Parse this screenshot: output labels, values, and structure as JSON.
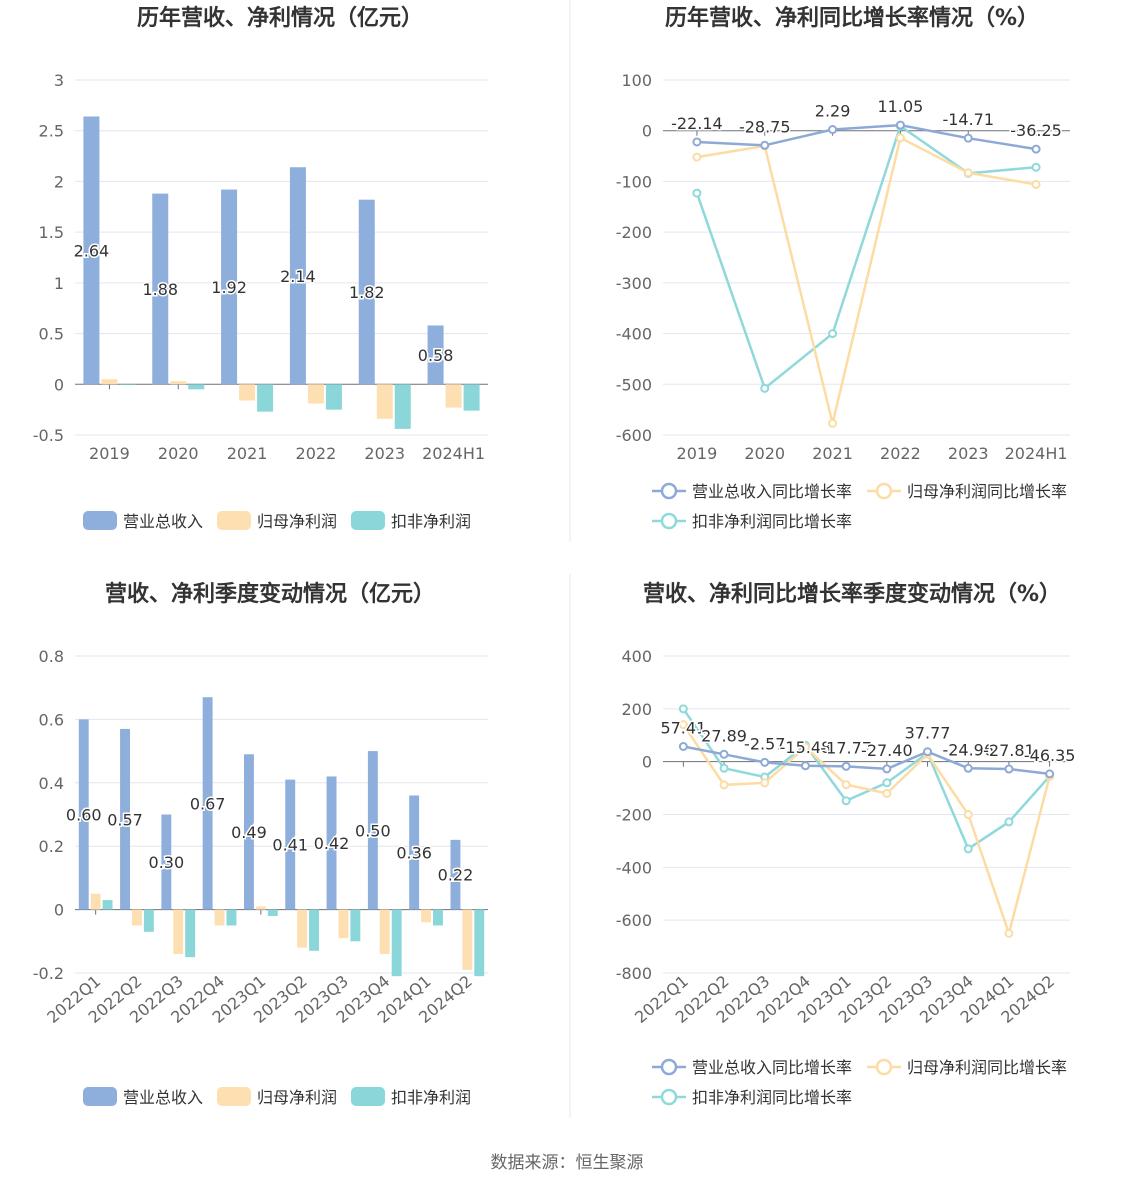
{
  "source": "数据来源：恒生聚源",
  "colors": {
    "revenue": "#8eaedc",
    "netprofit": "#fddfb1",
    "deducted": "#8ad6d8",
    "revenue_line": "#8ea9d6",
    "netprofit_line": "#fcdca4",
    "deducted_line": "#8fd9da",
    "axis_text": "#666666",
    "grid": "#e3e6ef",
    "title": "#333333"
  },
  "chart_data": [
    {
      "type": "bar",
      "title": "历年营收、净利情况（亿元）",
      "categories": [
        "2019",
        "2020",
        "2021",
        "2022",
        "2023",
        "2024H1"
      ],
      "ylim": [
        -0.5,
        3
      ],
      "yticks": [
        "3",
        "2.5",
        "2",
        "1.5",
        "1",
        "0.5",
        "0",
        "-0.5"
      ],
      "ytick_values": [
        3,
        2.5,
        2,
        1.5,
        1,
        0.5,
        0,
        -0.5
      ],
      "grid": true,
      "legend_position": "bottom",
      "series": [
        {
          "name": "营业总收入",
          "values": [
            2.64,
            1.88,
            1.92,
            2.14,
            1.82,
            0.58
          ],
          "labels": [
            "2.64",
            "1.88",
            "1.92",
            "2.14",
            "1.82",
            "0.58"
          ]
        },
        {
          "name": "归母净利润",
          "values": [
            0.05,
            0.03,
            -0.16,
            -0.19,
            -0.34,
            -0.23
          ]
        },
        {
          "name": "扣非净利润",
          "values": [
            0.0,
            -0.05,
            -0.27,
            -0.25,
            -0.44,
            -0.26
          ]
        }
      ]
    },
    {
      "type": "line",
      "title": "历年营收、净利同比增长率情况（%）",
      "categories": [
        "2019",
        "2020",
        "2021",
        "2022",
        "2023",
        "2024H1"
      ],
      "ylim": [
        -600,
        100
      ],
      "yticks": [
        "100",
        "0",
        "-100",
        "-200",
        "-300",
        "-400",
        "-500",
        "-600"
      ],
      "ytick_values": [
        100,
        0,
        -100,
        -200,
        -300,
        -400,
        -500,
        -600
      ],
      "grid": true,
      "legend_position": "bottom",
      "series": [
        {
          "name": "营业总收入同比增长率",
          "values": [
            -22.14,
            -28.75,
            2.29,
            11.05,
            -14.71,
            -36.25
          ],
          "labels": [
            "-22.14",
            "-28.75",
            "2.29",
            "11.05",
            "-14.71",
            "-36.25"
          ]
        },
        {
          "name": "归母净利润同比增长率",
          "values": [
            -52,
            -30,
            -577,
            -14,
            -83,
            -106
          ]
        },
        {
          "name": "扣非净利润同比增长率",
          "values": [
            -123,
            -508,
            -400,
            9,
            -84,
            -72
          ]
        }
      ]
    },
    {
      "type": "bar",
      "title": "营收、净利季度变动情况（亿元）",
      "categories": [
        "2022Q1",
        "2022Q2",
        "2022Q3",
        "2022Q4",
        "2023Q1",
        "2023Q2",
        "2023Q3",
        "2023Q4",
        "2024Q1",
        "2024Q2"
      ],
      "ylim": [
        -0.2,
        0.8
      ],
      "yticks": [
        "0.8",
        "0.6",
        "0.4",
        "0.2",
        "0",
        "-0.2"
      ],
      "ytick_values": [
        0.8,
        0.6,
        0.4,
        0.2,
        0,
        -0.2
      ],
      "grid": true,
      "legend_position": "bottom",
      "series": [
        {
          "name": "营业总收入",
          "values": [
            0.6,
            0.57,
            0.3,
            0.67,
            0.49,
            0.41,
            0.42,
            0.5,
            0.36,
            0.22
          ],
          "labels": [
            "0.60",
            "0.57",
            "0.30",
            "0.67",
            "0.49",
            "0.41",
            "0.42",
            "0.50",
            "0.36",
            "0.22"
          ]
        },
        {
          "name": "归母净利润",
          "values": [
            0.05,
            -0.05,
            -0.14,
            -0.05,
            0.01,
            -0.12,
            -0.09,
            -0.14,
            -0.04,
            -0.19
          ]
        },
        {
          "name": "扣非净利润",
          "values": [
            0.03,
            -0.07,
            -0.15,
            -0.05,
            -0.02,
            -0.13,
            -0.1,
            -0.21,
            -0.05,
            -0.21
          ]
        }
      ]
    },
    {
      "type": "line",
      "title": "营收、净利同比增长率季度变动情况（%）",
      "categories": [
        "2022Q1",
        "2022Q2",
        "2022Q3",
        "2022Q4",
        "2023Q1",
        "2023Q2",
        "2023Q3",
        "2023Q4",
        "2024Q1",
        "2024Q2"
      ],
      "ylim": [
        -800,
        400
      ],
      "yticks": [
        "400",
        "200",
        "0",
        "-200",
        "-400",
        "-600",
        "-800"
      ],
      "ytick_values": [
        400,
        200,
        0,
        -200,
        -400,
        -600,
        -800
      ],
      "grid": true,
      "legend_position": "bottom",
      "series": [
        {
          "name": "营业总收入同比增长率",
          "values": [
            57.41,
            27.89,
            -2.57,
            -15.48,
            -17.77,
            -27.4,
            37.77,
            -24.96,
            -27.81,
            -46.35
          ],
          "labels": [
            "57.41",
            "27.89",
            "-2.57",
            "-15.48",
            "-17.77",
            "-27.40",
            "37.77",
            "-24.96",
            "-27.81",
            "-46.35"
          ]
        },
        {
          "name": "归母净利润同比增长率",
          "values": [
            140,
            -88,
            -80,
            55,
            -87,
            -120,
            28,
            -200,
            -650,
            -55
          ]
        },
        {
          "name": "扣非净利润同比增长率",
          "values": [
            200,
            -25,
            -58,
            62,
            -148,
            -80,
            32,
            -330,
            -228,
            -55
          ]
        }
      ]
    }
  ]
}
